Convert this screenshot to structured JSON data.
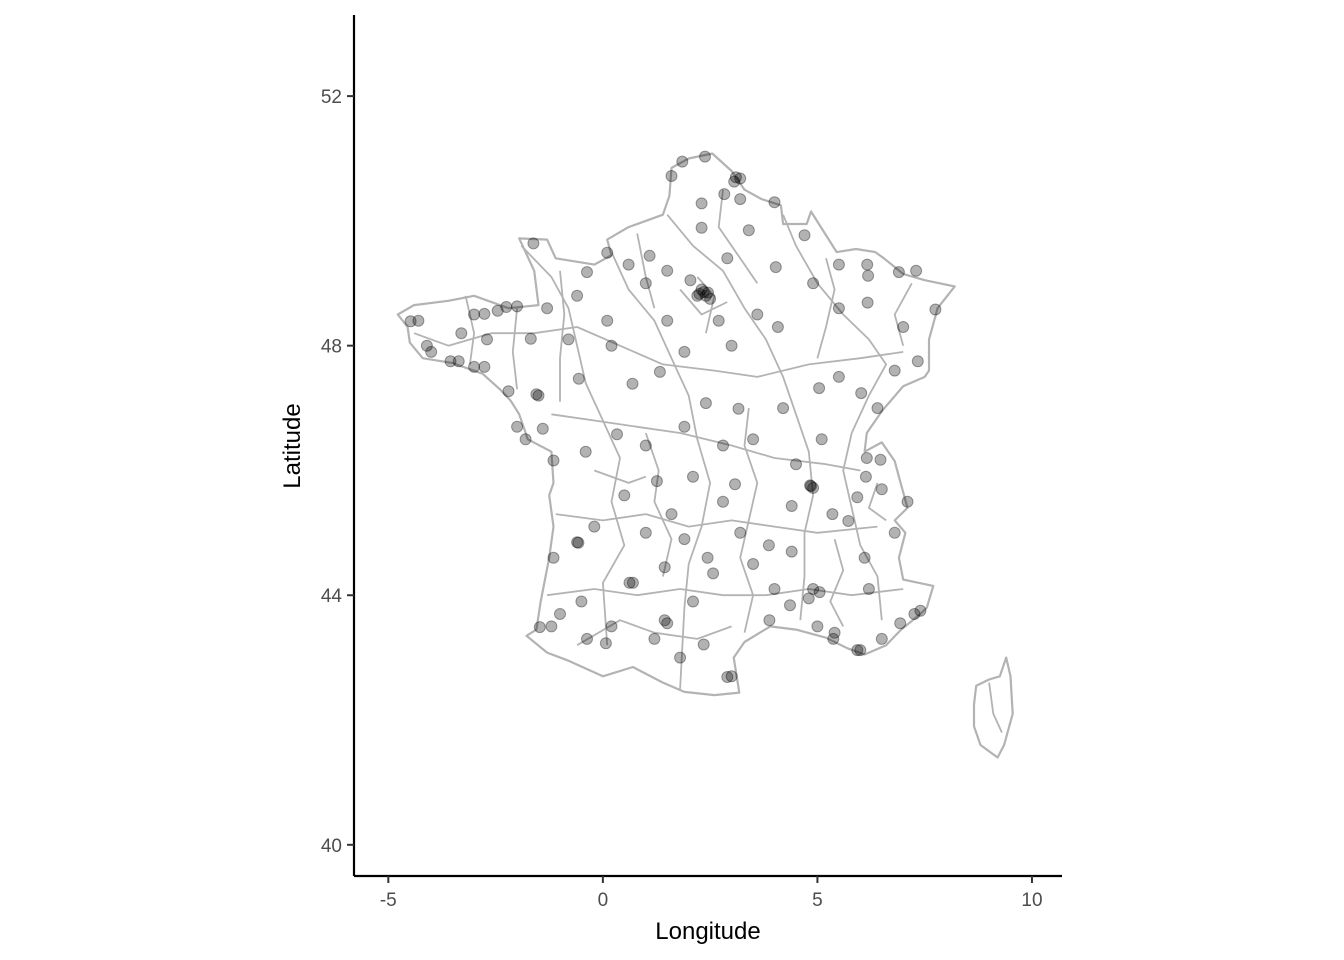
{
  "chart_data": {
    "type": "scatter",
    "title": "",
    "xlabel": "Longitude",
    "ylabel": "Latitude",
    "xlim": [
      -5.8,
      10.7
    ],
    "ylim": [
      39.5,
      53.3
    ],
    "x_ticks": [
      -5,
      0,
      5,
      10
    ],
    "y_ticks": [
      40,
      44,
      48,
      52
    ],
    "x_tick_labels": [
      "-5",
      "0",
      "5",
      "10"
    ],
    "y_tick_labels": [
      "40",
      "44",
      "48",
      "52"
    ],
    "grid": false,
    "legend": "none",
    "background": "map of France (department boundaries)",
    "colors": {
      "points": "#000000",
      "boundaries": "#b3b3b3",
      "axis": "#000000",
      "tick_text": "#4d4d4d"
    },
    "point_alpha": 0.3,
    "points": [
      [
        -4.48,
        48.39
      ],
      [
        -4.3,
        48.4
      ],
      [
        -4.1,
        48.0
      ],
      [
        -3.55,
        47.75
      ],
      [
        -3.36,
        47.75
      ],
      [
        -3.0,
        48.5
      ],
      [
        -2.76,
        48.51
      ],
      [
        -2.45,
        48.56
      ],
      [
        -2.25,
        48.62
      ],
      [
        -2.0,
        48.63
      ],
      [
        -1.68,
        48.11
      ],
      [
        -1.55,
        47.22
      ],
      [
        -1.5,
        47.2
      ],
      [
        -2.2,
        47.27
      ],
      [
        -1.8,
        46.5
      ],
      [
        -1.15,
        46.16
      ],
      [
        -0.57,
        44.84
      ],
      [
        -0.6,
        44.85
      ],
      [
        -1.15,
        44.6
      ],
      [
        -1.2,
        43.5
      ],
      [
        -1.47,
        43.49
      ],
      [
        -0.37,
        43.3
      ],
      [
        0.07,
        43.23
      ],
      [
        0.7,
        44.2
      ],
      [
        1.44,
        43.6
      ],
      [
        1.5,
        43.55
      ],
      [
        2.35,
        43.21
      ],
      [
        3.0,
        42.7
      ],
      [
        2.9,
        42.69
      ],
      [
        3.88,
        43.6
      ],
      [
        4.36,
        43.84
      ],
      [
        4.8,
        43.95
      ],
      [
        4.9,
        44.1
      ],
      [
        5.0,
        43.5
      ],
      [
        5.37,
        43.3
      ],
      [
        5.4,
        43.4
      ],
      [
        5.93,
        43.12
      ],
      [
        6.0,
        43.12
      ],
      [
        6.5,
        43.3
      ],
      [
        6.93,
        43.55
      ],
      [
        7.26,
        43.7
      ],
      [
        7.4,
        43.75
      ],
      [
        4.83,
        45.76
      ],
      [
        4.85,
        45.75
      ],
      [
        4.9,
        45.72
      ],
      [
        5.72,
        45.19
      ],
      [
        6.13,
        45.9
      ],
      [
        6.15,
        46.2
      ],
      [
        6.47,
        46.17
      ],
      [
        5.04,
        47.32
      ],
      [
        6.02,
        47.24
      ],
      [
        7.75,
        48.58
      ],
      [
        7.34,
        47.75
      ],
      [
        6.17,
        48.69
      ],
      [
        6.18,
        49.12
      ],
      [
        6.16,
        49.3
      ],
      [
        4.03,
        49.26
      ],
      [
        3.06,
        50.63
      ],
      [
        3.1,
        50.7
      ],
      [
        3.2,
        50.68
      ],
      [
        2.83,
        50.43
      ],
      [
        2.3,
        50.28
      ],
      [
        1.85,
        50.95
      ],
      [
        2.38,
        51.03
      ],
      [
        1.6,
        50.72
      ],
      [
        2.3,
        49.89
      ],
      [
        1.09,
        49.44
      ],
      [
        0.1,
        49.49
      ],
      [
        -0.37,
        49.18
      ],
      [
        -1.62,
        49.64
      ],
      [
        2.35,
        48.86
      ],
      [
        2.3,
        48.9
      ],
      [
        2.4,
        48.8
      ],
      [
        2.25,
        48.83
      ],
      [
        2.45,
        48.85
      ],
      [
        2.2,
        48.8
      ],
      [
        2.5,
        48.75
      ],
      [
        1.9,
        47.9
      ],
      [
        0.69,
        47.39
      ],
      [
        1.33,
        47.58
      ],
      [
        2.4,
        47.08
      ],
      [
        3.08,
        45.78
      ],
      [
        1.26,
        45.83
      ],
      [
        0.33,
        46.58
      ],
      [
        -0.56,
        47.47
      ],
      [
        0.2,
        48.0
      ],
      [
        3.87,
        44.8
      ],
      [
        2.57,
        44.35
      ],
      [
        1.44,
        44.45
      ],
      [
        0.62,
        44.2
      ],
      [
        4.4,
        45.43
      ],
      [
        5.93,
        45.57
      ],
      [
        6.5,
        45.7
      ],
      [
        5.1,
        46.5
      ],
      [
        3.16,
        46.99
      ],
      [
        4.5,
        46.1
      ],
      [
        2.04,
        49.05
      ],
      [
        1.0,
        49.0
      ],
      [
        3.0,
        48.0
      ],
      [
        4.08,
        48.3
      ],
      [
        5.5,
        48.6
      ],
      [
        7.0,
        48.3
      ],
      [
        7.3,
        49.2
      ],
      [
        6.9,
        49.18
      ],
      [
        4.7,
        49.77
      ],
      [
        3.4,
        49.85
      ],
      [
        3.2,
        50.35
      ],
      [
        4.0,
        50.3
      ],
      [
        -3.0,
        47.66
      ],
      [
        -2.76,
        47.66
      ],
      [
        -2.0,
        46.7
      ],
      [
        -1.4,
        46.67
      ],
      [
        -0.4,
        46.3
      ],
      [
        0.5,
        45.6
      ],
      [
        1.0,
        45.0
      ],
      [
        1.9,
        44.9
      ],
      [
        2.44,
        44.6
      ],
      [
        3.5,
        44.5
      ],
      [
        4.0,
        44.1
      ],
      [
        5.05,
        44.05
      ],
      [
        6.2,
        44.1
      ],
      [
        6.1,
        44.6
      ],
      [
        6.8,
        45.0
      ],
      [
        7.1,
        45.5
      ],
      [
        5.35,
        45.3
      ],
      [
        4.4,
        44.7
      ],
      [
        3.2,
        45.0
      ],
      [
        2.8,
        45.5
      ],
      [
        2.1,
        45.9
      ],
      [
        1.9,
        46.7
      ],
      [
        2.8,
        46.4
      ],
      [
        3.5,
        46.5
      ],
      [
        4.2,
        47.0
      ],
      [
        5.5,
        47.5
      ],
      [
        6.4,
        47.0
      ],
      [
        6.8,
        47.6
      ],
      [
        -0.5,
        43.9
      ],
      [
        0.2,
        43.5
      ],
      [
        1.2,
        43.3
      ],
      [
        2.1,
        43.9
      ],
      [
        1.8,
        43.0
      ],
      [
        -1.0,
        43.7
      ],
      [
        -4.0,
        47.9
      ],
      [
        -3.3,
        48.2
      ],
      [
        -2.7,
        48.1
      ],
      [
        -1.3,
        48.6
      ],
      [
        -0.6,
        48.8
      ],
      [
        0.6,
        49.3
      ],
      [
        1.5,
        49.2
      ],
      [
        2.9,
        49.4
      ],
      [
        5.5,
        49.3
      ],
      [
        4.9,
        49.0
      ],
      [
        3.6,
        48.5
      ],
      [
        2.7,
        48.4
      ],
      [
        1.5,
        48.4
      ],
      [
        0.1,
        48.4
      ],
      [
        -0.8,
        48.1
      ],
      [
        1.0,
        46.4
      ],
      [
        -0.2,
        45.1
      ],
      [
        1.6,
        45.3
      ]
    ]
  }
}
